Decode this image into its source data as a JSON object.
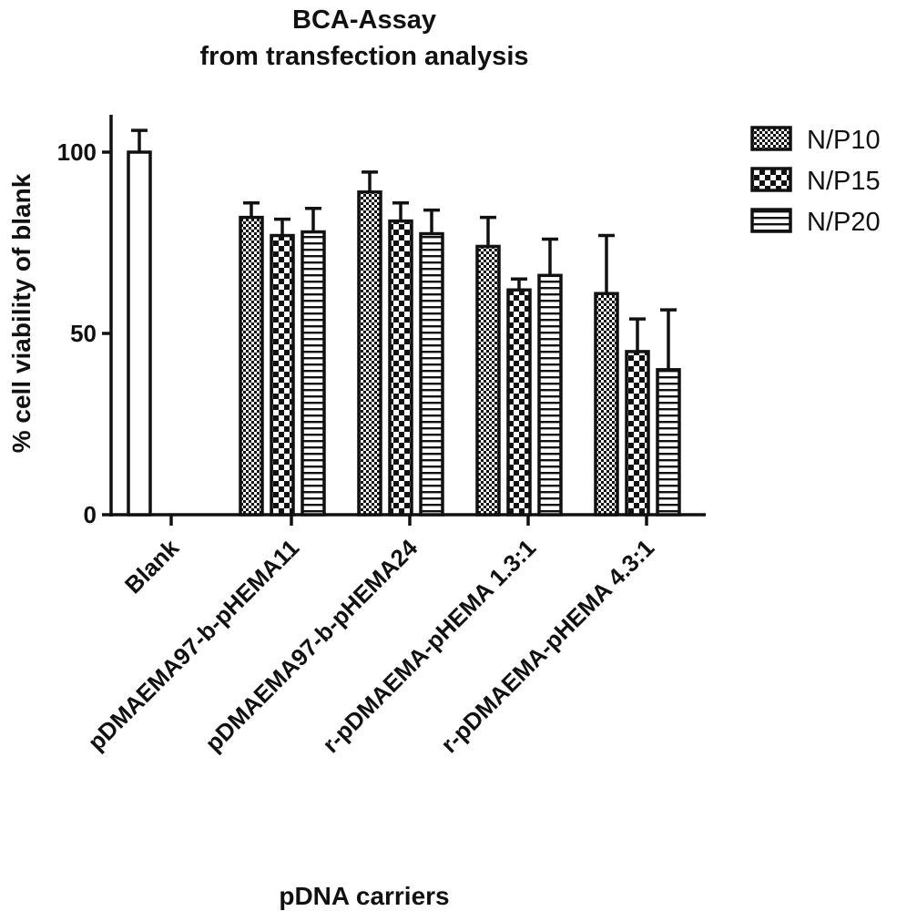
{
  "chart_data": {
    "type": "bar",
    "title": "BCA-Assay",
    "subtitle": "from transfection analysis",
    "xlabel": "pDNA carriers",
    "ylabel": "% cell viability of blank",
    "ylim": [
      0,
      100
    ],
    "yticks": [
      "0",
      "50",
      "100"
    ],
    "grid": false,
    "legend_position": "top-right",
    "categories": [
      "Blank",
      "pDMAEMA97-b-pHEMA11",
      "pDMAEMA97-b-pHEMA24",
      "r-pDMAEMA-pHEMA 1.3:1",
      "r-pDMAEMA-pHEMA 4.3:1"
    ],
    "blank": {
      "value": 100,
      "error": 6
    },
    "series": [
      {
        "name": "N/P10",
        "pattern": "fine-check",
        "values": [
          null,
          82,
          89,
          74,
          61
        ],
        "errors": [
          null,
          4,
          5.5,
          8,
          16
        ]
      },
      {
        "name": "N/P15",
        "pattern": "coarse-check",
        "values": [
          null,
          77,
          81,
          62,
          45
        ],
        "errors": [
          null,
          4.5,
          5,
          3,
          9
        ]
      },
      {
        "name": "N/P20",
        "pattern": "horizontal-stripes",
        "values": [
          null,
          78,
          77.5,
          66,
          40
        ],
        "errors": [
          null,
          6.5,
          6.5,
          10,
          16.5
        ]
      }
    ],
    "colors": {
      "ink": "#111111",
      "background": "#ffffff"
    }
  }
}
